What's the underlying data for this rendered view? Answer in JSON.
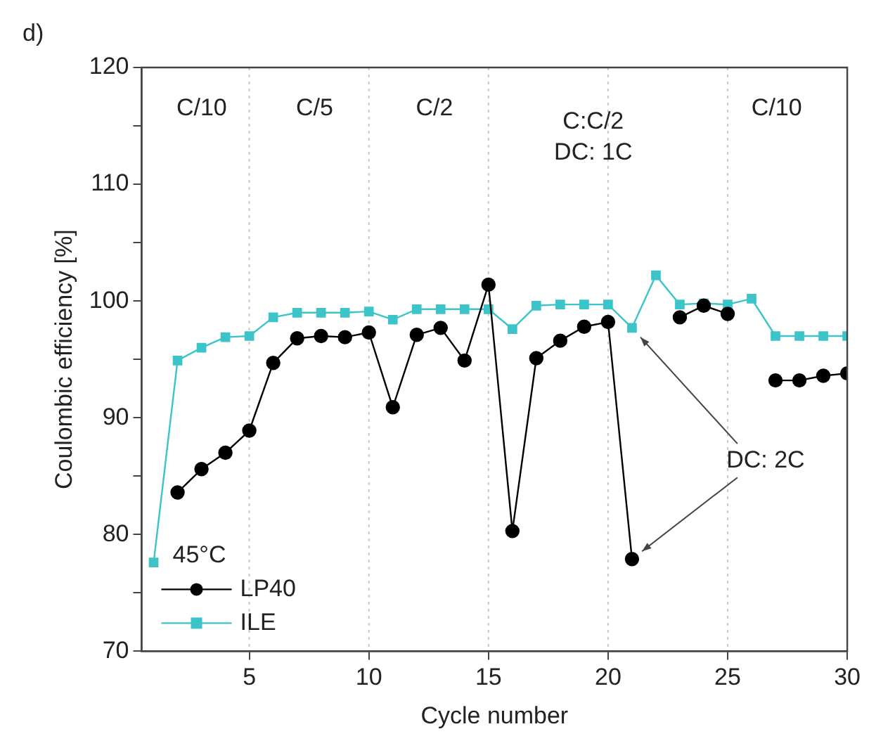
{
  "chart_data": {
    "type": "line",
    "xlabel": "Cycle number",
    "ylabel": "Coulombic efficiency [%]",
    "legend_title": "45°C",
    "x": [
      1,
      2,
      3,
      4,
      5,
      6,
      7,
      8,
      9,
      10,
      11,
      12,
      13,
      14,
      15,
      16,
      17,
      18,
      19,
      20,
      21,
      22,
      23,
      24,
      25,
      26,
      27,
      28,
      29,
      30
    ],
    "series": [
      {
        "name": "LP40",
        "color": "#000000",
        "marker": "circle",
        "values": [
          null,
          83.6,
          85.6,
          87.0,
          88.9,
          94.7,
          96.8,
          97.0,
          96.9,
          97.3,
          90.9,
          97.1,
          97.7,
          94.9,
          101.4,
          80.3,
          95.1,
          96.6,
          97.8,
          98.2,
          77.9,
          null,
          98.6,
          99.6,
          98.9,
          null,
          93.2,
          93.2,
          93.6,
          93.8
        ]
      },
      {
        "name": "ILE",
        "color": "#3cc4c8",
        "marker": "square",
        "values": [
          77.6,
          94.9,
          96.0,
          96.9,
          97.0,
          98.6,
          99.0,
          99.0,
          99.0,
          99.1,
          98.4,
          99.3,
          99.3,
          99.3,
          99.3,
          97.6,
          99.6,
          99.7,
          99.7,
          99.7,
          97.7,
          102.2,
          99.7,
          99.8,
          99.7,
          100.2,
          97.0,
          97.0,
          97.0,
          97.0
        ]
      }
    ],
    "xlim": [
      0.5,
      30
    ],
    "xticks": [
      5,
      10,
      15,
      20,
      25,
      30
    ],
    "ylim": [
      70,
      120
    ],
    "yticks": [
      70,
      {
        "value": 75,
        "label": null
      },
      80,
      {
        "value": 85,
        "label": null
      },
      90,
      {
        "value": 95,
        "label": null
      },
      100,
      {
        "value": 105,
        "label": null
      },
      110,
      {
        "value": 115,
        "label": null
      },
      120
    ],
    "ref_lines": [
      {
        "axis": "x",
        "value": 5,
        "color": "#c8c8c8",
        "line_style": "dotted"
      },
      {
        "axis": "x",
        "value": 10,
        "color": "#c8c8c8",
        "line_style": "dotted"
      },
      {
        "axis": "x",
        "value": 15,
        "color": "#c8c8c8",
        "line_style": "dotted"
      },
      {
        "axis": "x",
        "value": 20,
        "color": "#c8c8c8",
        "line_style": "dotted"
      },
      {
        "axis": "x",
        "value": 25,
        "color": "#c8c8c8",
        "line_style": "dotted"
      }
    ],
    "annotations": [
      "d)",
      "C/10",
      "C/5",
      "C/2",
      "C:C/2\nDC: 1C",
      "C/10",
      {
        "text": "DC: 2C",
        "x": 21,
        "y": 77.9
      }
    ],
    "grid": false,
    "legend": "bottom left",
    "line_style": "solid"
  }
}
